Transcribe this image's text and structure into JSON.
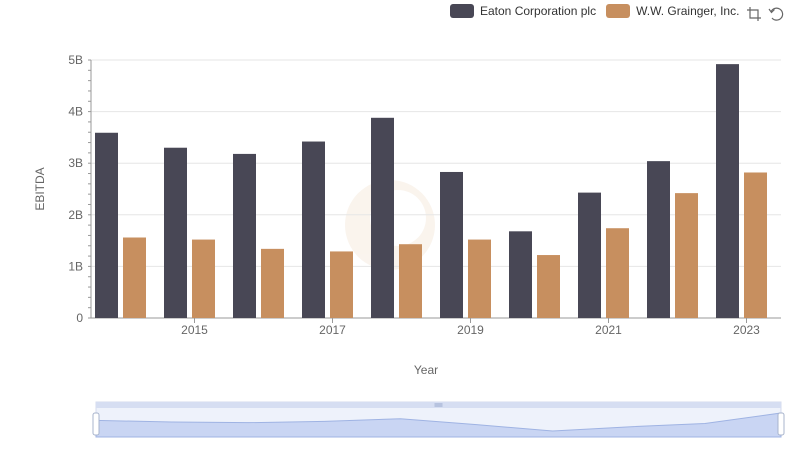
{
  "chart_data": {
    "type": "bar",
    "title": "",
    "xlabel": "Year",
    "ylabel": "EBITDA",
    "x_tick_labels": [
      "2015",
      "2017",
      "2019",
      "2021",
      "2023"
    ],
    "y_tick_labels": [
      "0",
      "1B",
      "2B",
      "3B",
      "4B",
      "5B"
    ],
    "ylim": [
      0,
      5000000000
    ],
    "grid": true,
    "legend_placement": "top-right",
    "categories": [
      2014,
      2015,
      2016,
      2017,
      2018,
      2019,
      2020,
      2021,
      2022,
      2023
    ],
    "series": [
      {
        "name": "Eaton Corporation plc",
        "color": "#484755",
        "values": [
          3590000000,
          3300000000,
          3180000000,
          3420000000,
          3880000000,
          2830000000,
          1680000000,
          2430000000,
          3040000000,
          4920000000
        ]
      },
      {
        "name": "W.W. Grainger, Inc.",
        "color": "#c78f5f",
        "values": [
          1560000000,
          1520000000,
          1340000000,
          1290000000,
          1430000000,
          1520000000,
          1220000000,
          1740000000,
          2420000000,
          2820000000
        ]
      }
    ]
  },
  "toolbar": {
    "zoom_icon": "zoom-select-icon",
    "restore_icon": "restore-icon"
  }
}
